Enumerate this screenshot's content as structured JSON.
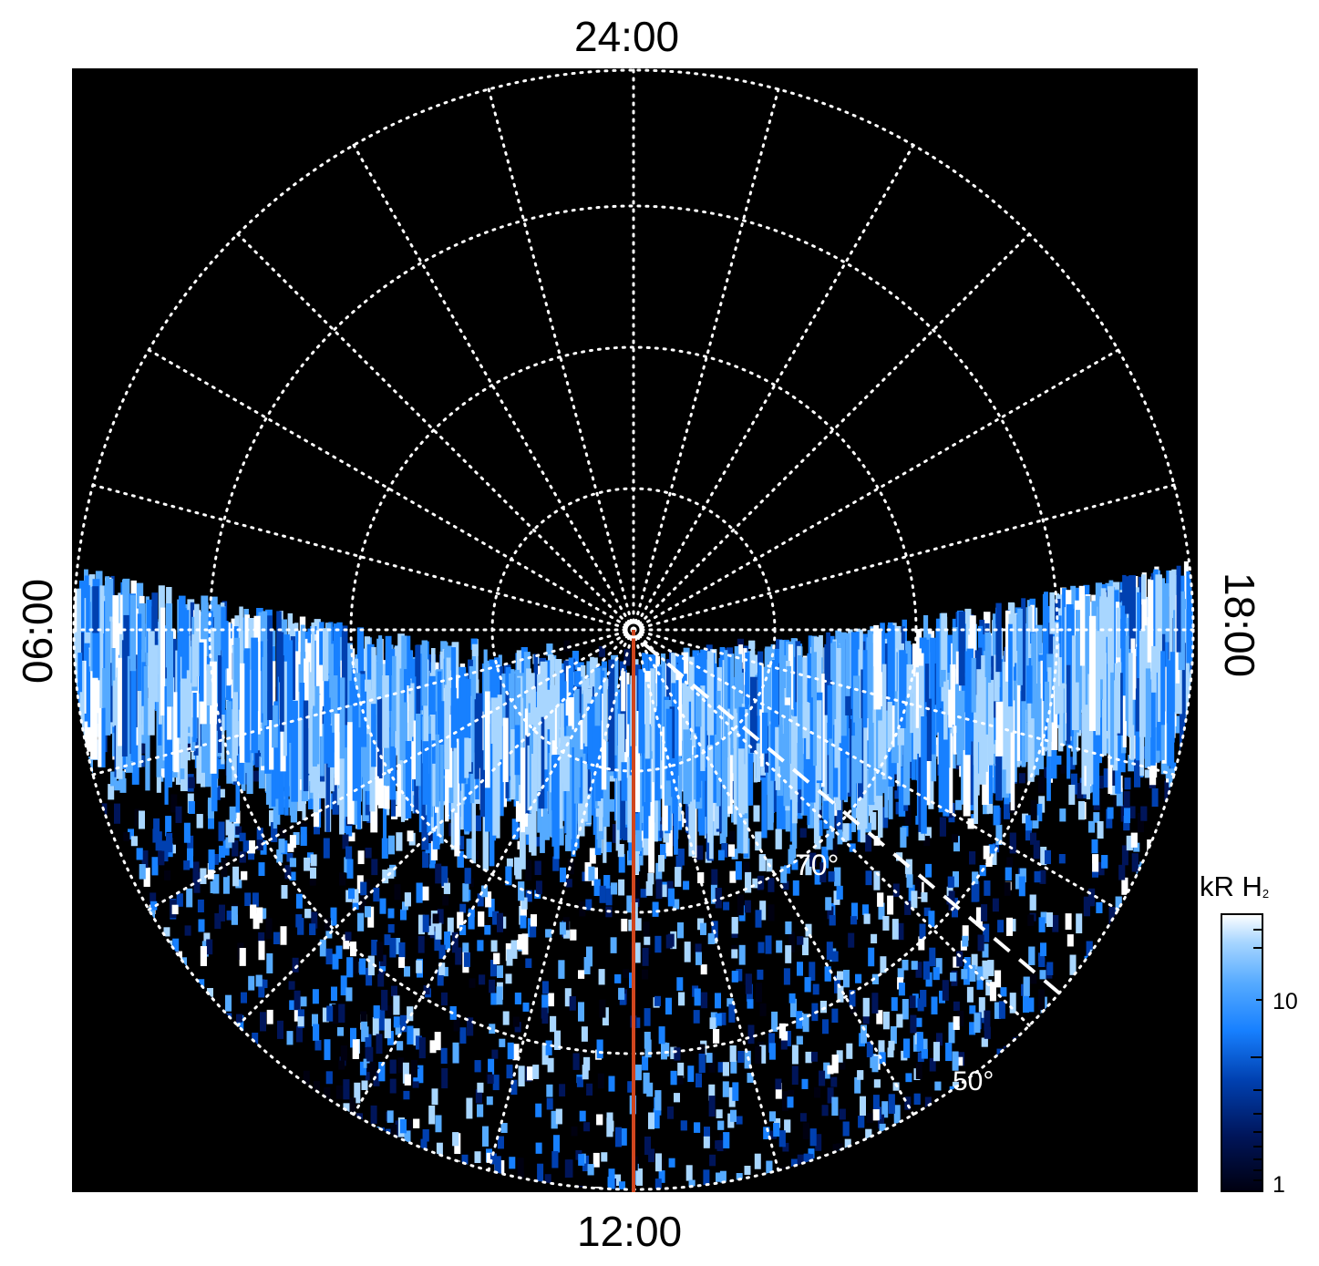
{
  "projection": {
    "local_time_labels": {
      "top": "24:00",
      "bottom": "12:00",
      "left": "06:00",
      "right": "18:00"
    },
    "latitude_labels": [
      "70°",
      "50°"
    ],
    "background_color": "#000000",
    "grid_color": "#ffffff",
    "meridian_line_color": "#d0461e"
  },
  "colorbar": {
    "title": "kR H",
    "title_subscript": "2",
    "ticks": [
      "10",
      "1"
    ],
    "colormap": [
      "#000010",
      "#00155a",
      "#0040b0",
      "#1780ff",
      "#55aaff",
      "#a8d6ff",
      "#ffffff"
    ],
    "scale": "log"
  }
}
